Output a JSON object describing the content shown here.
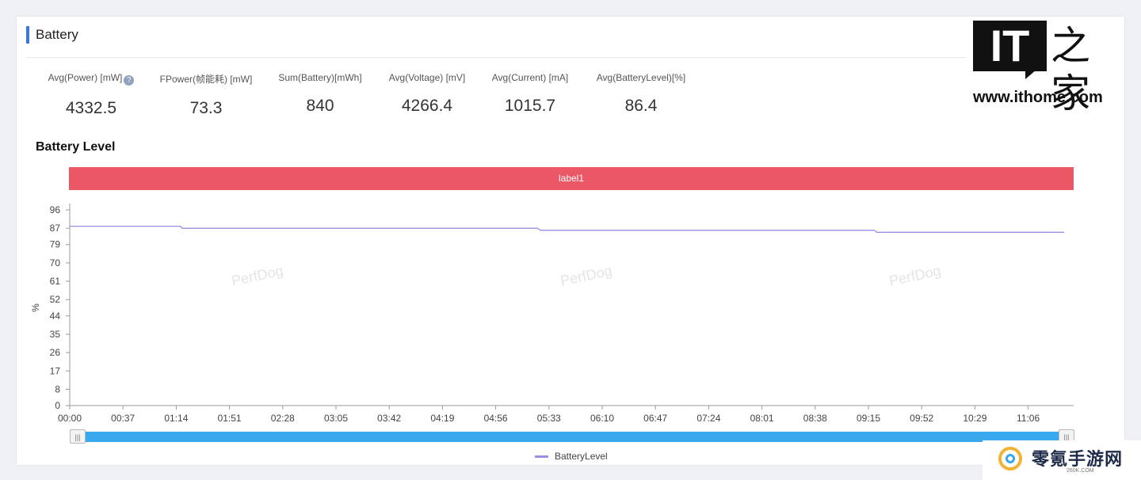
{
  "section": {
    "title": "Battery"
  },
  "metrics": [
    {
      "label": "Avg(Power) [mW]",
      "value": "4332.5",
      "help": "?"
    },
    {
      "label": "FPower(帧能耗) [mW]",
      "value": "73.3"
    },
    {
      "label": "Sum(Battery)[mWh]",
      "value": "840"
    },
    {
      "label": "Avg(Voltage) [mV]",
      "value": "4266.4"
    },
    {
      "label": "Avg(Current) [mA]",
      "value": "1015.7"
    },
    {
      "label": "Avg(BatteryLevel)[%]",
      "value": "86.4"
    }
  ],
  "chart_title": "Battery Level",
  "label_band": "label1",
  "watermark": "PerfDog",
  "legend": {
    "label": "BatteryLevel",
    "color": "#9b8ee6"
  },
  "logo": {
    "it": "IT",
    "cn": "之家",
    "url": "www.ithome.com"
  },
  "corner_brand": {
    "name": "零氪手游网",
    "sub": "260K.COM"
  },
  "colors": {
    "accent": "#3b78e7",
    "label_band": "#ec5766",
    "slider": "#3aa8ef",
    "line": "#9b8ee6"
  },
  "chart_data": {
    "type": "line",
    "title": "Battery Level",
    "xlabel": "",
    "ylabel": "%",
    "y_ticks": [
      0,
      8,
      17,
      26,
      35,
      44,
      52,
      61,
      70,
      79,
      87,
      96
    ],
    "ylim": [
      0,
      96
    ],
    "x_ticks": [
      "00:00",
      "00:37",
      "01:14",
      "01:51",
      "02:28",
      "03:05",
      "03:42",
      "04:19",
      "04:56",
      "05:33",
      "06:10",
      "06:47",
      "07:24",
      "08:01",
      "08:38",
      "09:15",
      "09:52",
      "10:29",
      "11:06"
    ],
    "grid": false,
    "legend_position": "bottom",
    "series": [
      {
        "name": "BatteryLevel",
        "points": [
          {
            "t": "00:00",
            "v": 88
          },
          {
            "t": "01:17",
            "v": 88
          },
          {
            "t": "01:18",
            "v": 87
          },
          {
            "t": "05:25",
            "v": 87
          },
          {
            "t": "05:27",
            "v": 86
          },
          {
            "t": "09:19",
            "v": 86
          },
          {
            "t": "09:21",
            "v": 85
          },
          {
            "t": "11:31",
            "v": 85
          }
        ]
      }
    ]
  }
}
